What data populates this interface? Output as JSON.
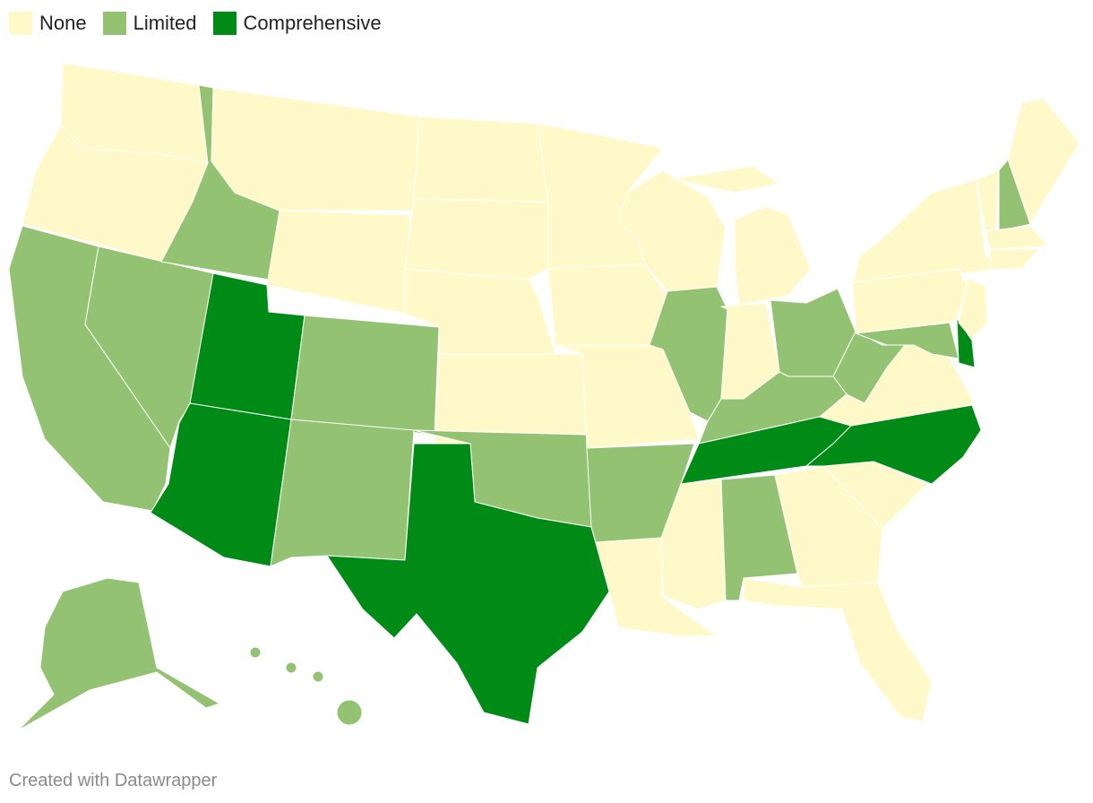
{
  "legend": [
    {
      "label": "None",
      "color": "#fff9c9"
    },
    {
      "label": "Limited",
      "color": "#93c272"
    },
    {
      "label": "Comprehensive",
      "color": "#008a16"
    }
  ],
  "regions": [
    "None",
    "None",
    "Limited",
    "Limited",
    "Limited",
    "None",
    "None",
    "Comprehensive",
    "Comprehensive",
    "Limited",
    "Limited",
    "None",
    "None",
    "None",
    "None",
    "Limited",
    "Comprehensive",
    "None",
    "None",
    "None",
    "Limited",
    "None",
    "None",
    "Limited",
    "None",
    "None",
    "Limited",
    "Limited",
    "Comprehensive",
    "None",
    "Limited",
    "None",
    "None",
    "None",
    "Comprehensive",
    "None",
    "Limited",
    "Limited",
    "Comprehensive",
    "None",
    "None",
    "None",
    "None",
    "Limited",
    "None",
    "None",
    "None",
    "Limited",
    "Limited"
  ],
  "footer": "Created with Datawrapper"
}
